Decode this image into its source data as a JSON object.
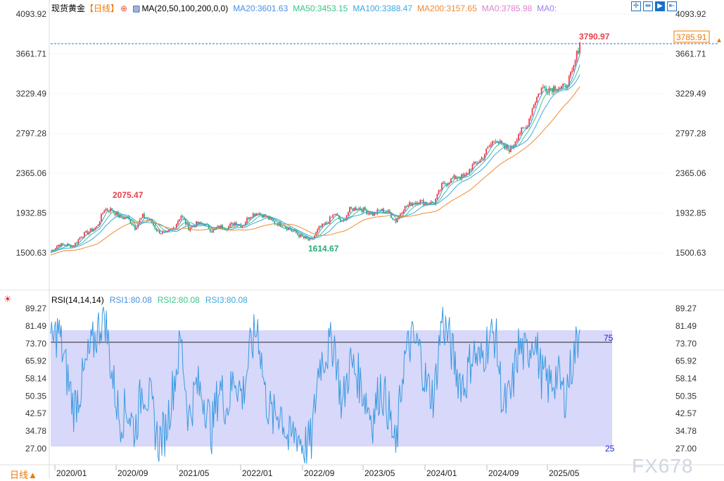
{
  "header": {
    "symbol": "现货黄金",
    "period": "【日线】",
    "ma_label": "MA(20,50,100,200,0,0)",
    "ma20": "MA20:3601.63",
    "ma50": "MA50:3453.15",
    "ma100": "MA100:3388.47",
    "ma200": "MA200:3157.65",
    "ma0a": "MA0:3785.98",
    "ma0b": "MA0:"
  },
  "rsi_header": {
    "label": "RSI(14,14,14)",
    "rsi1": "RSI1:80.08",
    "rsi2": "RSI2:80.08",
    "rsi3": "RSI3:80.08"
  },
  "footer": {
    "period_button": "日线▲",
    "watermark": "FX678"
  },
  "colors": {
    "up": "#e8404a",
    "down": "#2aa876",
    "ma20": "#4a90e2",
    "ma50": "#3cc48a",
    "ma100": "#3aa8e0",
    "ma200": "#f08a30",
    "rsi": "#3a9ae0",
    "band": "#d8d8fa"
  },
  "chart_data": [
    {
      "type": "candlestick",
      "title": "现货黄金 日线",
      "y_ticks": [
        "4093.92",
        "3661.71",
        "3229.49",
        "2797.28",
        "2365.06",
        "1932.85",
        "1500.63"
      ],
      "ylim": [
        1500.63,
        4093.92
      ],
      "x_ticks": [
        "2020/01",
        "2020/09",
        "2021/05",
        "2022/01",
        "2022/09",
        "2023/05",
        "2024/01",
        "2024/09",
        "2025/05"
      ],
      "x_start": "2019/12",
      "monthly_close": [
        1517,
        1587,
        1585,
        1577,
        1686,
        1730,
        1781,
        1975,
        1967,
        1886,
        1879,
        1776,
        1898,
        1847,
        1734,
        1707,
        1769,
        1906,
        1770,
        1814,
        1813,
        1743,
        1783,
        1774,
        1829,
        1797,
        1909,
        1937,
        1896,
        1837,
        1807,
        1766,
        1711,
        1660,
        1633,
        1768,
        1824,
        1928,
        1827,
        1969,
        1990,
        1962,
        1919,
        1965,
        1940,
        1849,
        1983,
        2036,
        2063,
        2039,
        2044,
        2230,
        2286,
        2327,
        2326,
        2447,
        2503,
        2634,
        2744,
        2643,
        2625,
        2798,
        2858,
        3124,
        3288,
        3289,
        3303,
        3290,
        3448,
        3786
      ],
      "annotations": {
        "high": "3790.97",
        "prev_high": "2075.47",
        "low": "1614.67",
        "last_price": "3785.91"
      }
    },
    {
      "type": "line",
      "title": "RSI(14,14,14)",
      "y_ticks": [
        "89.27",
        "81.49",
        "73.70",
        "65.92",
        "58.14",
        "50.35",
        "42.57",
        "34.78",
        "27.00"
      ],
      "ylim": [
        27.0,
        89.27
      ],
      "levels": {
        "upper": "75",
        "lower": "25"
      },
      "values": [
        72,
        80,
        62,
        45,
        55,
        68,
        78,
        88,
        60,
        40,
        45,
        35,
        55,
        48,
        30,
        35,
        55,
        75,
        40,
        55,
        50,
        35,
        55,
        45,
        60,
        50,
        70,
        82,
        50,
        40,
        45,
        30,
        35,
        28,
        30,
        65,
        70,
        75,
        45,
        65,
        60,
        50,
        40,
        55,
        45,
        25,
        65,
        75,
        72,
        55,
        50,
        85,
        75,
        60,
        55,
        70,
        65,
        75,
        78,
        45,
        50,
        72,
        68,
        78,
        60,
        55,
        60,
        50,
        65,
        80
      ]
    }
  ]
}
